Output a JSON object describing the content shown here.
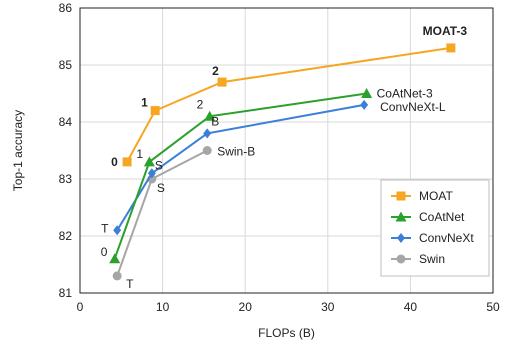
{
  "chart_data": {
    "type": "line",
    "title": "",
    "xlabel": "FLOPs (B)",
    "ylabel": "Top-1 accuracy",
    "xlim": [
      0,
      50
    ],
    "ylim": [
      81,
      86
    ],
    "xticks": [
      "0",
      "10",
      "20",
      "30",
      "40",
      "50"
    ],
    "yticks": [
      "81",
      "82",
      "83",
      "84",
      "85",
      "86"
    ],
    "grid": true,
    "legend_position": "bottom-right",
    "series": [
      {
        "name": "MOAT",
        "color": "#f5a623",
        "marker": "square",
        "points": [
          {
            "x": 5.7,
            "y": 83.3,
            "label": "0"
          },
          {
            "x": 9.1,
            "y": 84.2,
            "label": "1"
          },
          {
            "x": 17.2,
            "y": 84.7,
            "label": "2"
          },
          {
            "x": 44.9,
            "y": 85.3,
            "label": "MOAT-3"
          }
        ]
      },
      {
        "name": "CoAtNet",
        "color": "#2ca02c",
        "marker": "triangle",
        "points": [
          {
            "x": 4.2,
            "y": 81.6,
            "label": "0"
          },
          {
            "x": 8.4,
            "y": 83.3,
            "label": "1"
          },
          {
            "x": 15.7,
            "y": 84.1,
            "label": "2"
          },
          {
            "x": 34.7,
            "y": 84.5,
            "label": "CoAtNet-3"
          }
        ]
      },
      {
        "name": "ConvNeXt",
        "color": "#3b7fd9",
        "marker": "diamond",
        "points": [
          {
            "x": 4.5,
            "y": 82.1,
            "label": "T"
          },
          {
            "x": 8.7,
            "y": 83.1,
            "label": "S"
          },
          {
            "x": 15.4,
            "y": 83.8,
            "label": "B"
          },
          {
            "x": 34.4,
            "y": 84.3,
            "label": "ConvNeXt-L"
          }
        ]
      },
      {
        "name": "Swin",
        "color": "#a6a6a6",
        "marker": "circle",
        "points": [
          {
            "x": 4.5,
            "y": 81.3,
            "label": "T"
          },
          {
            "x": 8.7,
            "y": 83.0,
            "label": "S"
          },
          {
            "x": 15.4,
            "y": 83.5,
            "label": "Swin-B"
          }
        ]
      }
    ]
  }
}
